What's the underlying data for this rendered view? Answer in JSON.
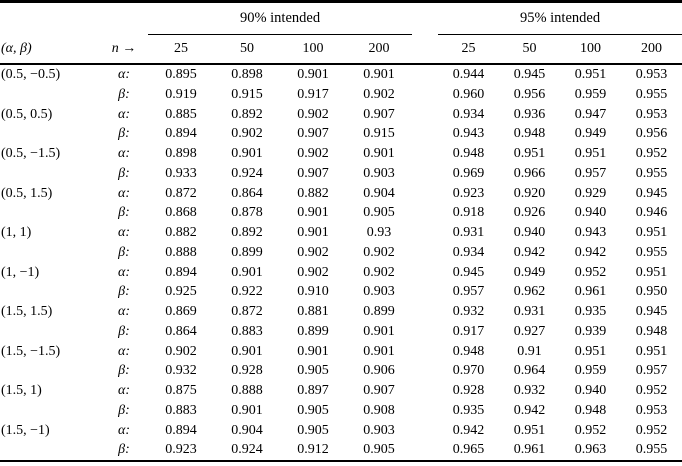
{
  "table": {
    "group_headers": [
      "90% intended",
      "95% intended"
    ],
    "corner_header": "(α, β)",
    "n_header": "n →",
    "col_headers_90": [
      "25",
      "50",
      "100",
      "200"
    ],
    "col_headers_95": [
      "25",
      "50",
      "100",
      "200"
    ],
    "rows": [
      {
        "pair": "(0.5, −0.5)",
        "sub": "α:",
        "values": [
          "0.895",
          "0.898",
          "0.901",
          "0.901",
          "0.944",
          "0.945",
          "0.951",
          "0.953"
        ]
      },
      {
        "pair": "",
        "sub": "β:",
        "values": [
          "0.919",
          "0.915",
          "0.917",
          "0.902",
          "0.960",
          "0.956",
          "0.959",
          "0.955"
        ]
      },
      {
        "pair": "(0.5, 0.5)",
        "sub": "α:",
        "values": [
          "0.885",
          "0.892",
          "0.902",
          "0.907",
          "0.934",
          "0.936",
          "0.947",
          "0.953"
        ]
      },
      {
        "pair": "",
        "sub": "β:",
        "values": [
          "0.894",
          "0.902",
          "0.907",
          "0.915",
          "0.943",
          "0.948",
          "0.949",
          "0.956"
        ]
      },
      {
        "pair": "(0.5, −1.5)",
        "sub": "α:",
        "values": [
          "0.898",
          "0.901",
          "0.902",
          "0.901",
          "0.948",
          "0.951",
          "0.951",
          "0.952"
        ]
      },
      {
        "pair": "",
        "sub": "β:",
        "values": [
          "0.933",
          "0.924",
          "0.907",
          "0.903",
          "0.969",
          "0.966",
          "0.957",
          "0.955"
        ]
      },
      {
        "pair": "(0.5, 1.5)",
        "sub": "α:",
        "values": [
          "0.872",
          "0.864",
          "0.882",
          "0.904",
          "0.923",
          "0.920",
          "0.929",
          "0.945"
        ]
      },
      {
        "pair": "",
        "sub": "β:",
        "values": [
          "0.868",
          "0.878",
          "0.901",
          "0.905",
          "0.918",
          "0.926",
          "0.940",
          "0.946"
        ]
      },
      {
        "pair": "(1, 1)",
        "sub": "α:",
        "values": [
          "0.882",
          "0.892",
          "0.901",
          "0.93",
          "0.931",
          "0.940",
          "0.943",
          "0.951"
        ]
      },
      {
        "pair": "",
        "sub": "β:",
        "values": [
          "0.888",
          "0.899",
          "0.902",
          "0.902",
          "0.934",
          "0.942",
          "0.942",
          "0.955"
        ]
      },
      {
        "pair": "(1, −1)",
        "sub": "α:",
        "values": [
          "0.894",
          "0.901",
          "0.902",
          "0.902",
          "0.945",
          "0.949",
          "0.952",
          "0.951"
        ]
      },
      {
        "pair": "",
        "sub": "β:",
        "values": [
          "0.925",
          "0.922",
          "0.910",
          "0.903",
          "0.957",
          "0.962",
          "0.961",
          "0.950"
        ]
      },
      {
        "pair": "(1.5, 1.5)",
        "sub": "α:",
        "values": [
          "0.869",
          "0.872",
          "0.881",
          "0.899",
          "0.932",
          "0.931",
          "0.935",
          "0.945"
        ]
      },
      {
        "pair": "",
        "sub": "β:",
        "values": [
          "0.864",
          "0.883",
          "0.899",
          "0.901",
          "0.917",
          "0.927",
          "0.939",
          "0.948"
        ]
      },
      {
        "pair": "(1.5, −1.5)",
        "sub": "α:",
        "values": [
          "0.902",
          "0.901",
          "0.901",
          "0.901",
          "0.948",
          "0.91",
          "0.951",
          "0.951"
        ]
      },
      {
        "pair": "",
        "sub": "β:",
        "values": [
          "0.932",
          "0.928",
          "0.905",
          "0.906",
          "0.970",
          "0.964",
          "0.959",
          "0.957"
        ]
      },
      {
        "pair": "(1.5, 1)",
        "sub": "α:",
        "values": [
          "0.875",
          "0.888",
          "0.897",
          "0.907",
          "0.928",
          "0.932",
          "0.940",
          "0.952"
        ]
      },
      {
        "pair": "",
        "sub": "β:",
        "values": [
          "0.883",
          "0.901",
          "0.905",
          "0.908",
          "0.935",
          "0.942",
          "0.948",
          "0.953"
        ]
      },
      {
        "pair": "(1.5, −1)",
        "sub": "α:",
        "values": [
          "0.894",
          "0.904",
          "0.905",
          "0.903",
          "0.942",
          "0.951",
          "0.952",
          "0.952"
        ]
      },
      {
        "pair": "",
        "sub": "β:",
        "values": [
          "0.923",
          "0.924",
          "0.912",
          "0.905",
          "0.965",
          "0.961",
          "0.963",
          "0.955"
        ]
      }
    ]
  }
}
